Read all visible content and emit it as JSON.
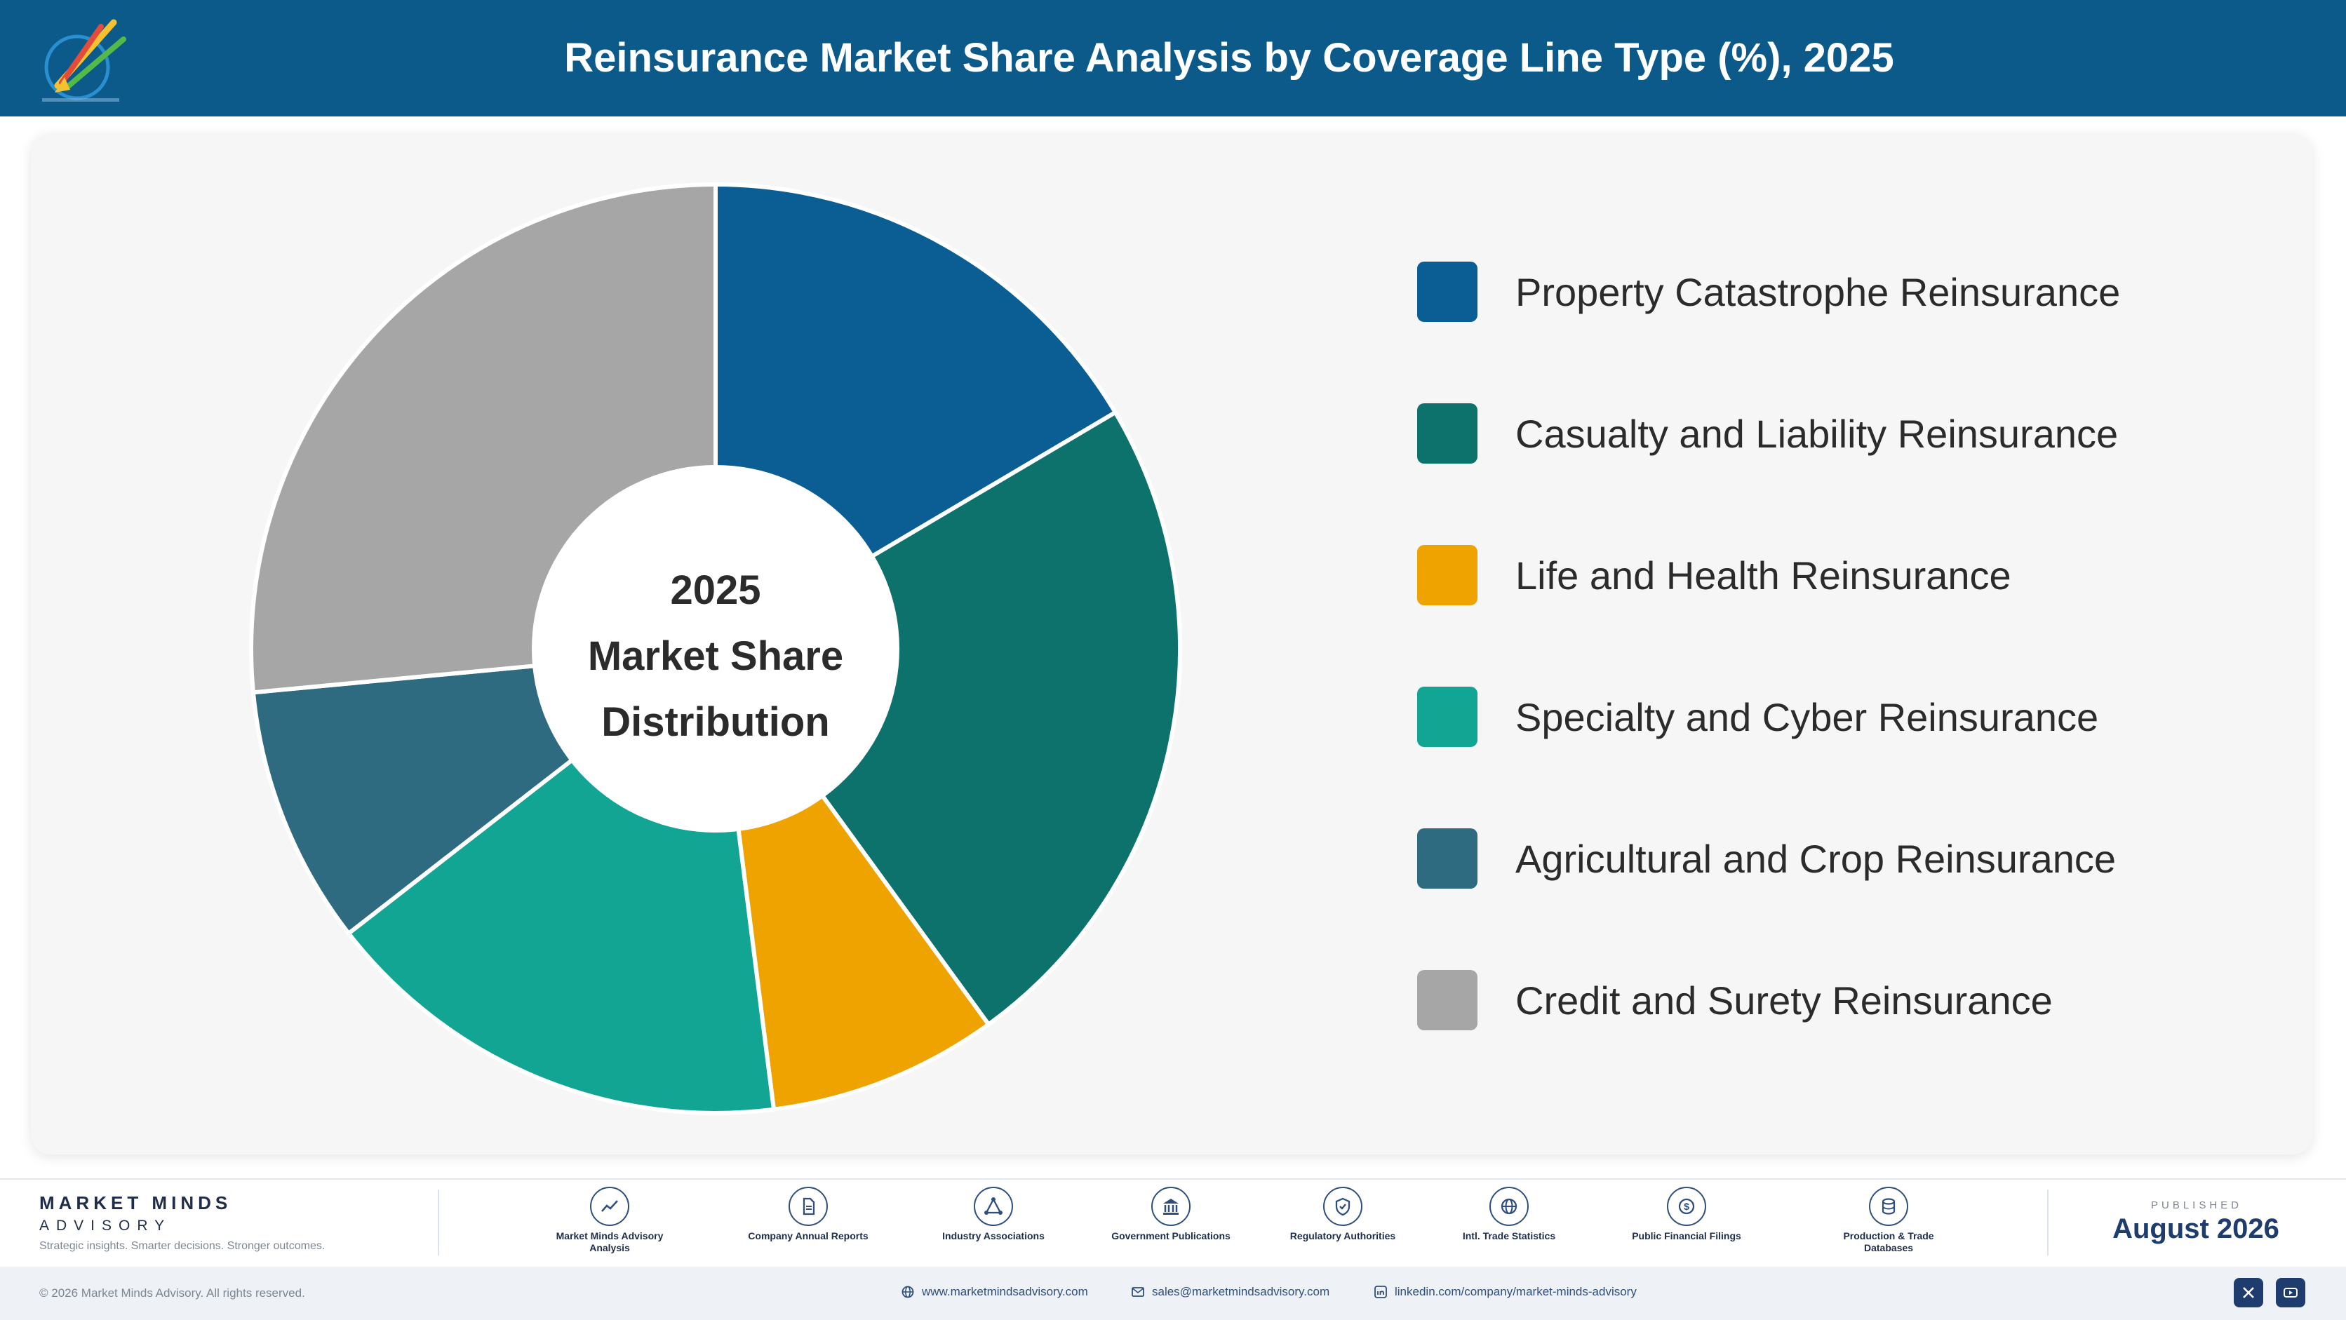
{
  "header": {
    "title": "Reinsurance Market Share Analysis by Coverage Line Type (%), 2025"
  },
  "chart_data": {
    "type": "pie",
    "title": "Reinsurance Market Share Analysis by Coverage Line Type (%), 2025",
    "center_text": [
      "2025",
      "Market Share",
      "Distribution"
    ],
    "legend_position": "right",
    "series": [
      {
        "name": "Property Catastrophe Reinsurance",
        "value": 16.5,
        "color": "#0a5e94"
      },
      {
        "name": "Casualty and Liability Reinsurance",
        "value": 23.5,
        "color": "#0c726b"
      },
      {
        "name": "Life and Health Reinsurance",
        "value": 8.0,
        "color": "#efa300"
      },
      {
        "name": "Specialty and Cyber Reinsurance",
        "value": 16.5,
        "color": "#12a594"
      },
      {
        "name": "Agricultural and Crop Reinsurance",
        "value": 9.0,
        "color": "#2e6a80"
      },
      {
        "name": "Credit and Surety Reinsurance",
        "value": 26.5,
        "color": "#a6a6a6"
      }
    ]
  },
  "footer": {
    "brand_name": "MARKET MINDS",
    "brand_sub": "ADVISORY",
    "tagline": "Strategic insights. Smarter decisions. Stronger outcomes.",
    "sources": [
      {
        "label": "Market Minds Advisory Analysis",
        "icon": "trend-icon"
      },
      {
        "label": "Company Annual Reports",
        "icon": "document-icon"
      },
      {
        "label": "Industry Associations",
        "icon": "network-icon"
      },
      {
        "label": "Government Publications",
        "icon": "building-icon"
      },
      {
        "label": "Regulatory Authorities",
        "icon": "shield-icon"
      },
      {
        "label": "Intl. Trade Statistics",
        "icon": "globe-icon"
      },
      {
        "label": "Public Financial Filings",
        "icon": "dollar-icon"
      },
      {
        "label": "Production & Trade Databases",
        "icon": "database-icon"
      }
    ],
    "published_label": "PUBLISHED",
    "published_date": "August 2026",
    "copyright": "© 2026 Market Minds Advisory. All rights reserved.",
    "website": "www.marketmindsadvisory.com",
    "email": "sales@marketmindsadvisory.com",
    "linkedin": "linkedin.com/company/market-minds-advisory"
  }
}
